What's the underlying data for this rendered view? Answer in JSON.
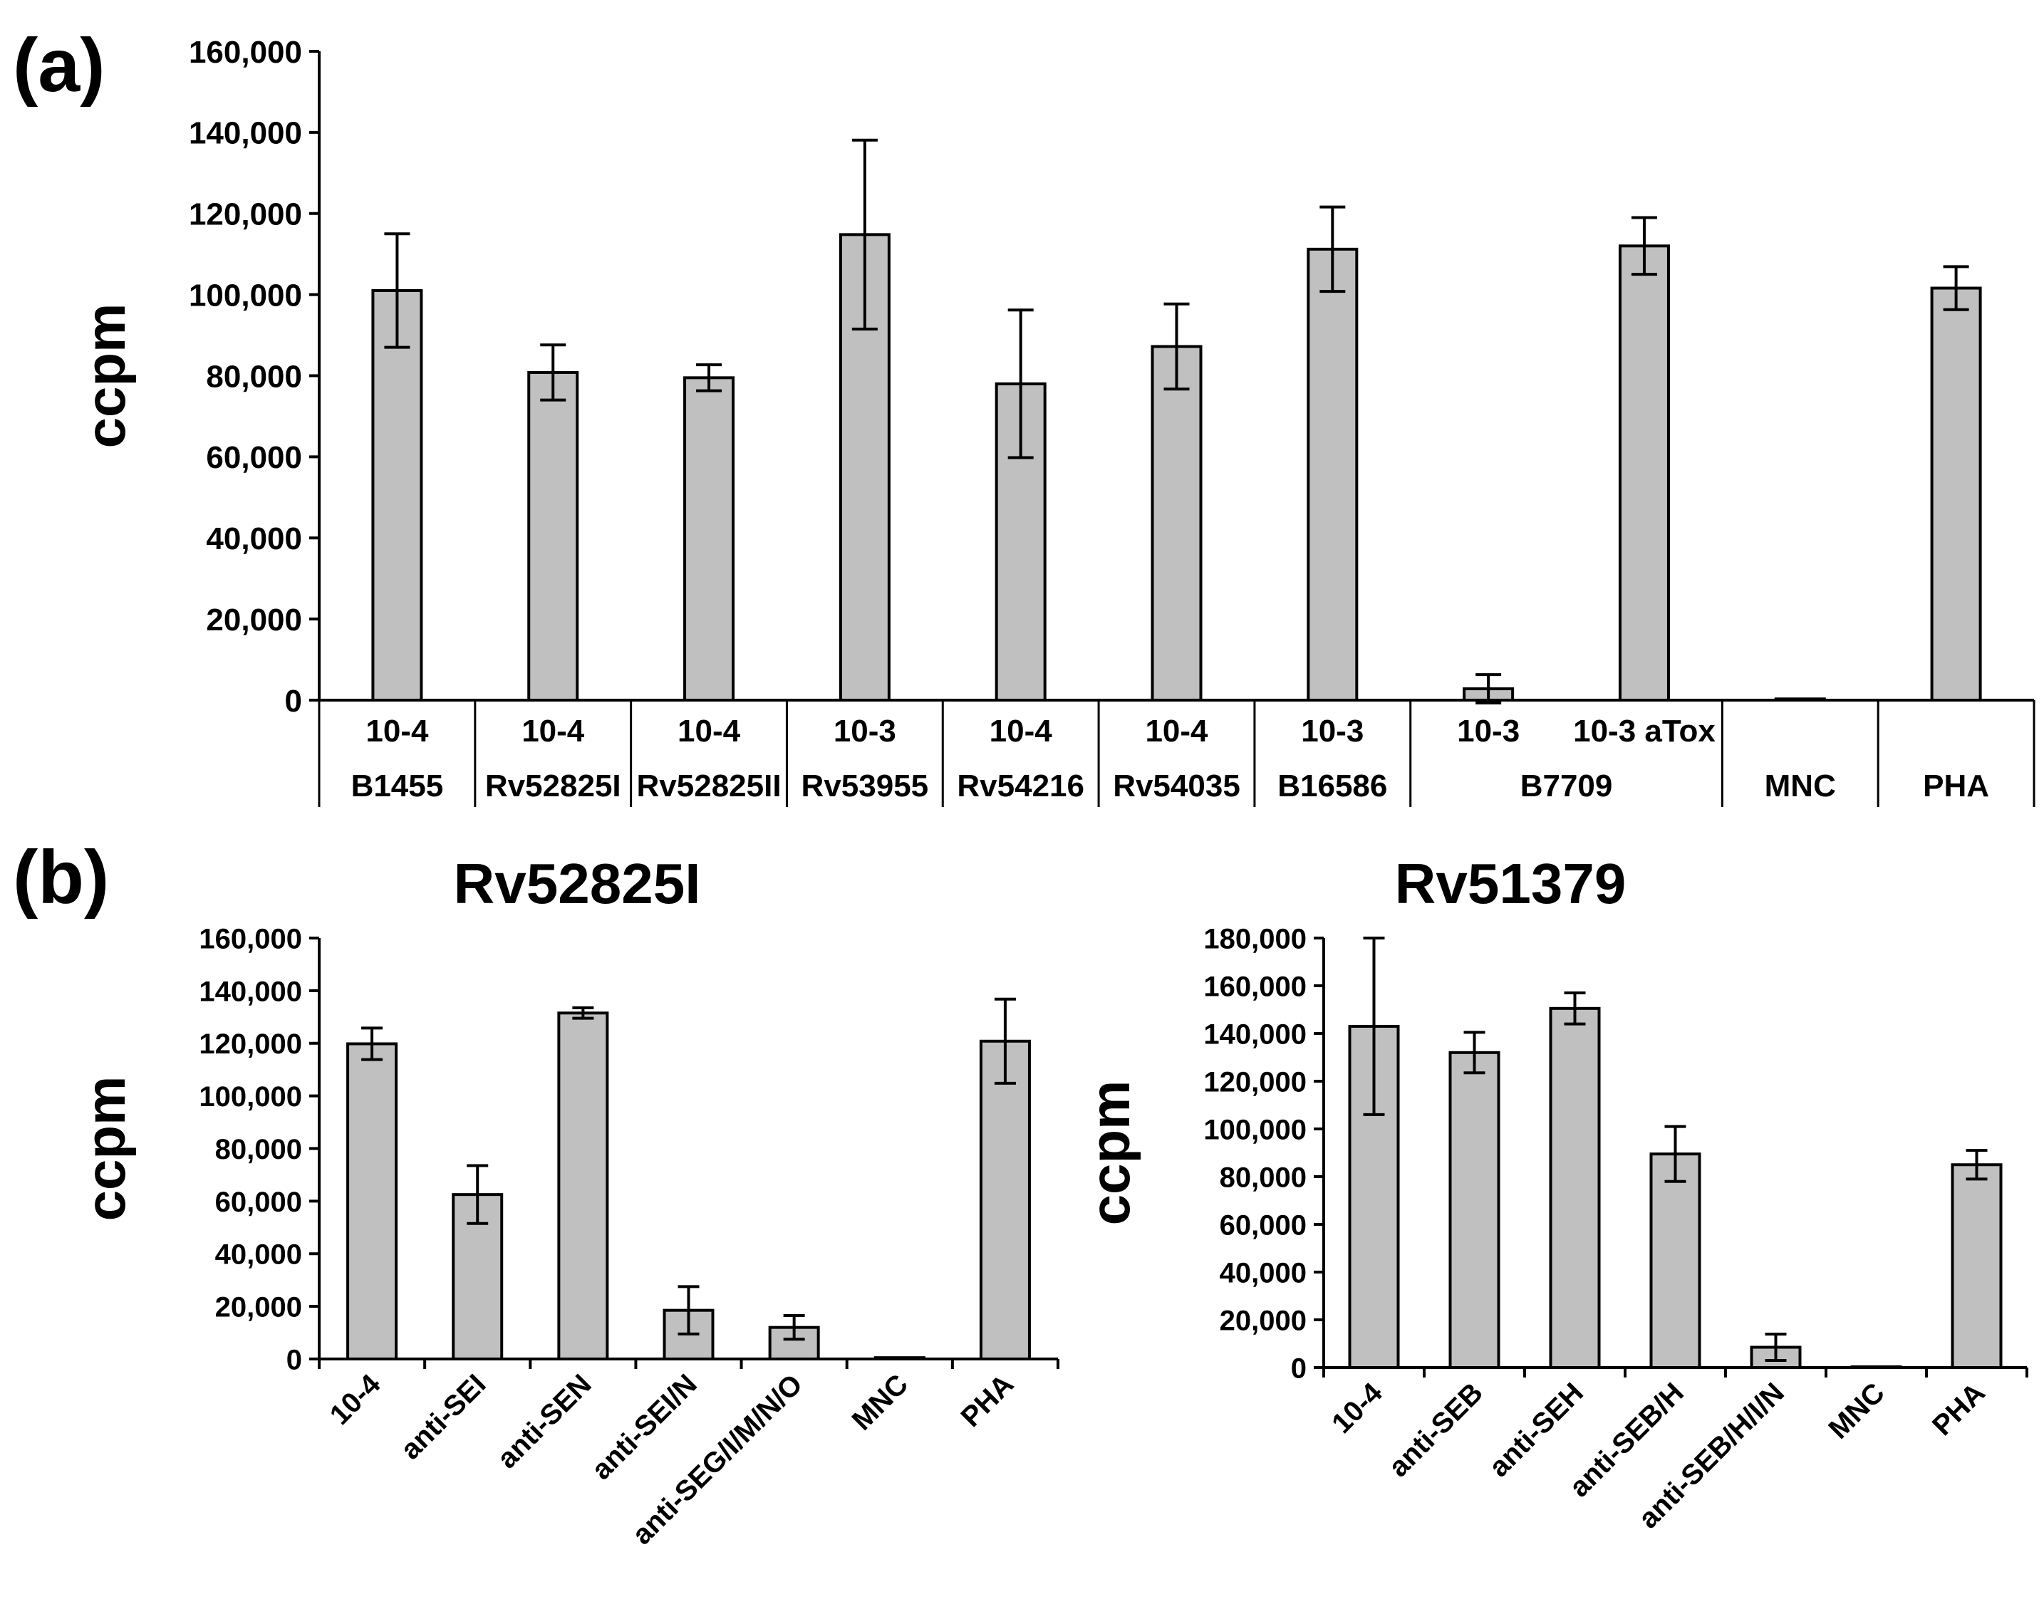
{
  "figure": {
    "panel_a_label": "(a)",
    "panel_b_label": "(b)"
  },
  "chart_data": [
    {
      "id": "a",
      "type": "bar",
      "title": "",
      "ylabel": "ccpm",
      "xlabel": "",
      "ylim": [
        0,
        160000
      ],
      "ytick_step": 20000,
      "ytick_labels": [
        "0",
        "20,000",
        "40,000",
        "60,000",
        "80,000",
        "100,000",
        "120,000",
        "140,000",
        "160,000"
      ],
      "categories": [
        "10-4",
        "10-4",
        "10-4",
        "10-3",
        "10-4",
        "10-4",
        "10-3",
        "10-3",
        "10-3 aTox",
        "",
        ""
      ],
      "groups": [
        {
          "label": "B1455",
          "size": 1
        },
        {
          "label": "Rv52825I",
          "size": 1
        },
        {
          "label": "Rv52825II",
          "size": 1
        },
        {
          "label": "Rv53955",
          "size": 1
        },
        {
          "label": "Rv54216",
          "size": 1
        },
        {
          "label": "Rv54035",
          "size": 1
        },
        {
          "label": "B16586",
          "size": 1
        },
        {
          "label": "B7709",
          "size": 2
        },
        {
          "label": "MNC",
          "size": 1
        },
        {
          "label": "PHA",
          "size": 1
        }
      ],
      "values": [
        101000,
        80800,
        79500,
        114800,
        78000,
        87200,
        111200,
        2800,
        112000,
        300,
        101600
      ],
      "errors": [
        14000,
        6800,
        3200,
        23300,
        18200,
        10500,
        10400,
        3500,
        7000,
        0,
        5300
      ],
      "bar_color": "#c0c0c0"
    },
    {
      "id": "b1",
      "type": "bar",
      "title": "Rv52825I",
      "ylabel": "ccpm",
      "xlabel": "",
      "ylim": [
        0,
        160000
      ],
      "ytick_step": 20000,
      "ytick_labels": [
        "0",
        "20,000",
        "40,000",
        "60,000",
        "80,000",
        "100,000",
        "120,000",
        "140,000",
        "160,000"
      ],
      "categories": [
        "10-4",
        "anti-SEI",
        "anti-SEN",
        "anti-SEI/N",
        "anti-SEG/I/M/N/O",
        "MNC",
        "PHA"
      ],
      "values": [
        119800,
        62500,
        131500,
        18500,
        12000,
        500,
        120800
      ],
      "errors": [
        6000,
        11000,
        2000,
        9000,
        4500,
        0,
        16000
      ],
      "bar_color": "#c0c0c0"
    },
    {
      "id": "b2",
      "type": "bar",
      "title": "Rv51379",
      "ylabel": "ccpm",
      "xlabel": "",
      "ylim": [
        0,
        180000
      ],
      "ytick_step": 20000,
      "ytick_labels": [
        "0",
        "20,000",
        "40,000",
        "60,000",
        "80,000",
        "100,000",
        "120,000",
        "140,000",
        "160,000",
        "180,000"
      ],
      "categories": [
        "10-4",
        "anti-SEB",
        "anti-SEH",
        "anti-SEB/H",
        "anti-SEB/H/I/N",
        "MNC",
        "PHA"
      ],
      "values": [
        143000,
        132000,
        150500,
        89500,
        8500,
        300,
        85000
      ],
      "errors": [
        37000,
        8500,
        6500,
        11500,
        5500,
        0,
        6000
      ],
      "bar_color": "#c0c0c0"
    }
  ]
}
